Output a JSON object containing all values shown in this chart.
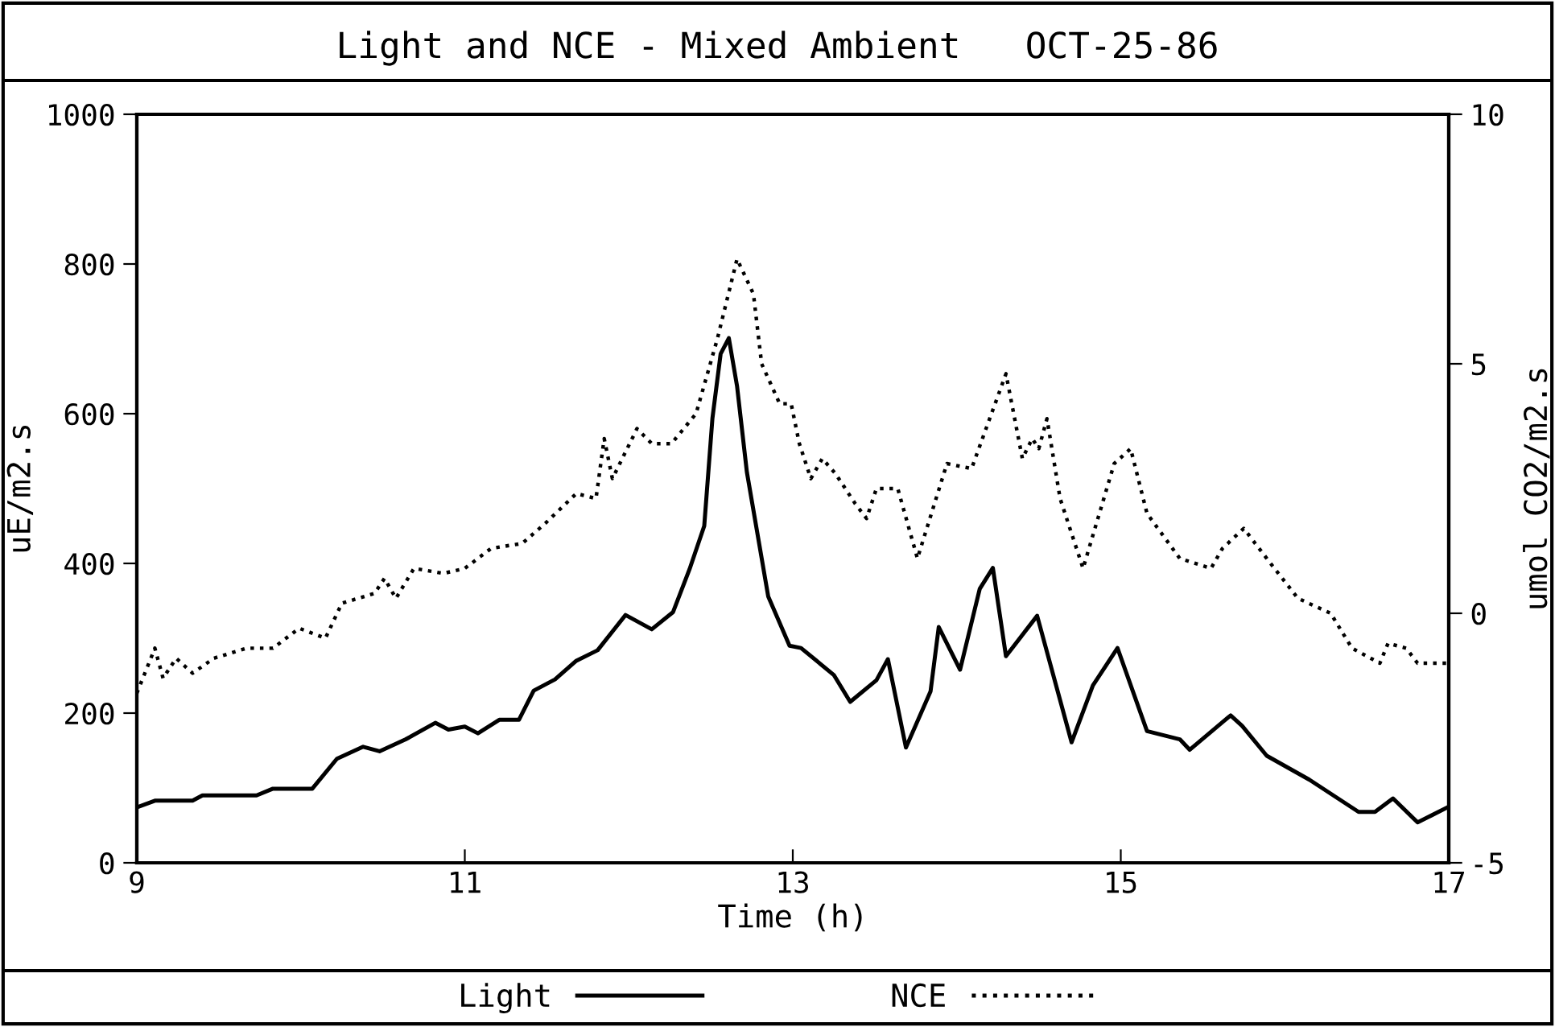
{
  "chart_data": {
    "type": "line",
    "title": "Light and NCE - Mixed Ambient   OCT-25-86",
    "xlabel": "Time (h)",
    "ylabel": "uE/m2.s",
    "y2label": "umol CO2/m2.s",
    "xlim": [
      9,
      17
    ],
    "xticks": [
      9,
      11,
      13,
      15,
      17
    ],
    "ylim": [
      0,
      1000
    ],
    "yticks": [
      0,
      200,
      400,
      600,
      800,
      1000
    ],
    "y2lim": [
      -5,
      10
    ],
    "y2ticks": [
      -5,
      0,
      5,
      10
    ],
    "grid": false,
    "legend": "bottom",
    "marker": "none",
    "series": [
      {
        "name": "Light",
        "color": "#000000",
        "line_style": "solid",
        "x": [
          9.0,
          9.11,
          9.34,
          9.4,
          9.73,
          9.83,
          10.07,
          10.22,
          10.38,
          10.48,
          10.64,
          10.82,
          10.9,
          11.0,
          11.08,
          11.21,
          11.33,
          11.42,
          11.55,
          11.68,
          11.81,
          11.98,
          12.14,
          12.27,
          12.37,
          12.46,
          12.51,
          12.56,
          12.61,
          12.66,
          12.72,
          12.85,
          12.98,
          13.05,
          13.25,
          13.35,
          13.51,
          13.58,
          13.69,
          13.84,
          13.89,
          14.02,
          14.14,
          14.22,
          14.3,
          14.49,
          14.7,
          14.83,
          14.98,
          15.16,
          15.36,
          15.42,
          15.67,
          15.74,
          15.89,
          16.15,
          16.45,
          16.55,
          16.66,
          16.81,
          17.0
        ],
        "values": [
          74,
          83,
          83,
          90,
          90,
          99,
          99,
          139,
          155,
          149,
          165,
          187,
          178,
          182,
          173,
          191,
          191,
          230,
          245,
          270,
          284,
          331,
          312,
          335,
          392,
          450,
          594,
          680,
          701,
          637,
          522,
          356,
          290,
          287,
          251,
          215,
          244,
          272,
          154,
          229,
          315,
          258,
          366,
          394,
          276,
          330,
          161,
          237,
          287,
          176,
          165,
          151,
          197,
          183,
          143,
          111,
          68,
          68,
          86,
          54,
          75
        ]
      },
      {
        "name": "NCE",
        "color": "#000000",
        "line_style": "dotted",
        "axis": "y2",
        "x": [
          9.0,
          9.11,
          9.16,
          9.24,
          9.34,
          9.47,
          9.67,
          9.83,
          9.99,
          10.15,
          10.25,
          10.45,
          10.51,
          10.58,
          10.69,
          10.87,
          11.0,
          11.16,
          11.35,
          11.49,
          11.68,
          11.8,
          11.85,
          11.9,
          12.05,
          12.14,
          12.26,
          12.41,
          12.54,
          12.66,
          12.76,
          12.81,
          12.92,
          12.99,
          13.04,
          13.11,
          13.18,
          13.26,
          13.38,
          13.45,
          13.51,
          13.64,
          13.76,
          13.94,
          14.09,
          14.3,
          14.4,
          14.46,
          14.5,
          14.55,
          14.63,
          14.77,
          14.96,
          15.06,
          15.16,
          15.36,
          15.55,
          15.62,
          15.75,
          15.89,
          16.08,
          16.28,
          16.41,
          16.58,
          16.63,
          16.74,
          16.81,
          17.0
        ],
        "values": [
          -1.6,
          -0.7,
          -1.3,
          -0.9,
          -1.2,
          -0.9,
          -0.7,
          -0.7,
          -0.3,
          -0.5,
          0.2,
          0.4,
          0.7,
          0.3,
          0.9,
          0.8,
          0.9,
          1.3,
          1.4,
          1.8,
          2.4,
          2.3,
          3.5,
          2.7,
          3.7,
          3.4,
          3.4,
          4.0,
          5.5,
          7.1,
          6.4,
          5.0,
          4.2,
          4.2,
          3.4,
          2.7,
          3.1,
          2.8,
          2.2,
          1.9,
          2.5,
          2.5,
          1.1,
          3.0,
          2.9,
          4.8,
          3.1,
          3.5,
          3.3,
          3.9,
          2.3,
          0.9,
          3.0,
          3.3,
          2.0,
          1.1,
          0.9,
          1.3,
          1.7,
          1.1,
          0.3,
          0.0,
          -0.7,
          -1.0,
          -0.6,
          -0.7,
          -1.0,
          -1.0
        ]
      }
    ]
  }
}
